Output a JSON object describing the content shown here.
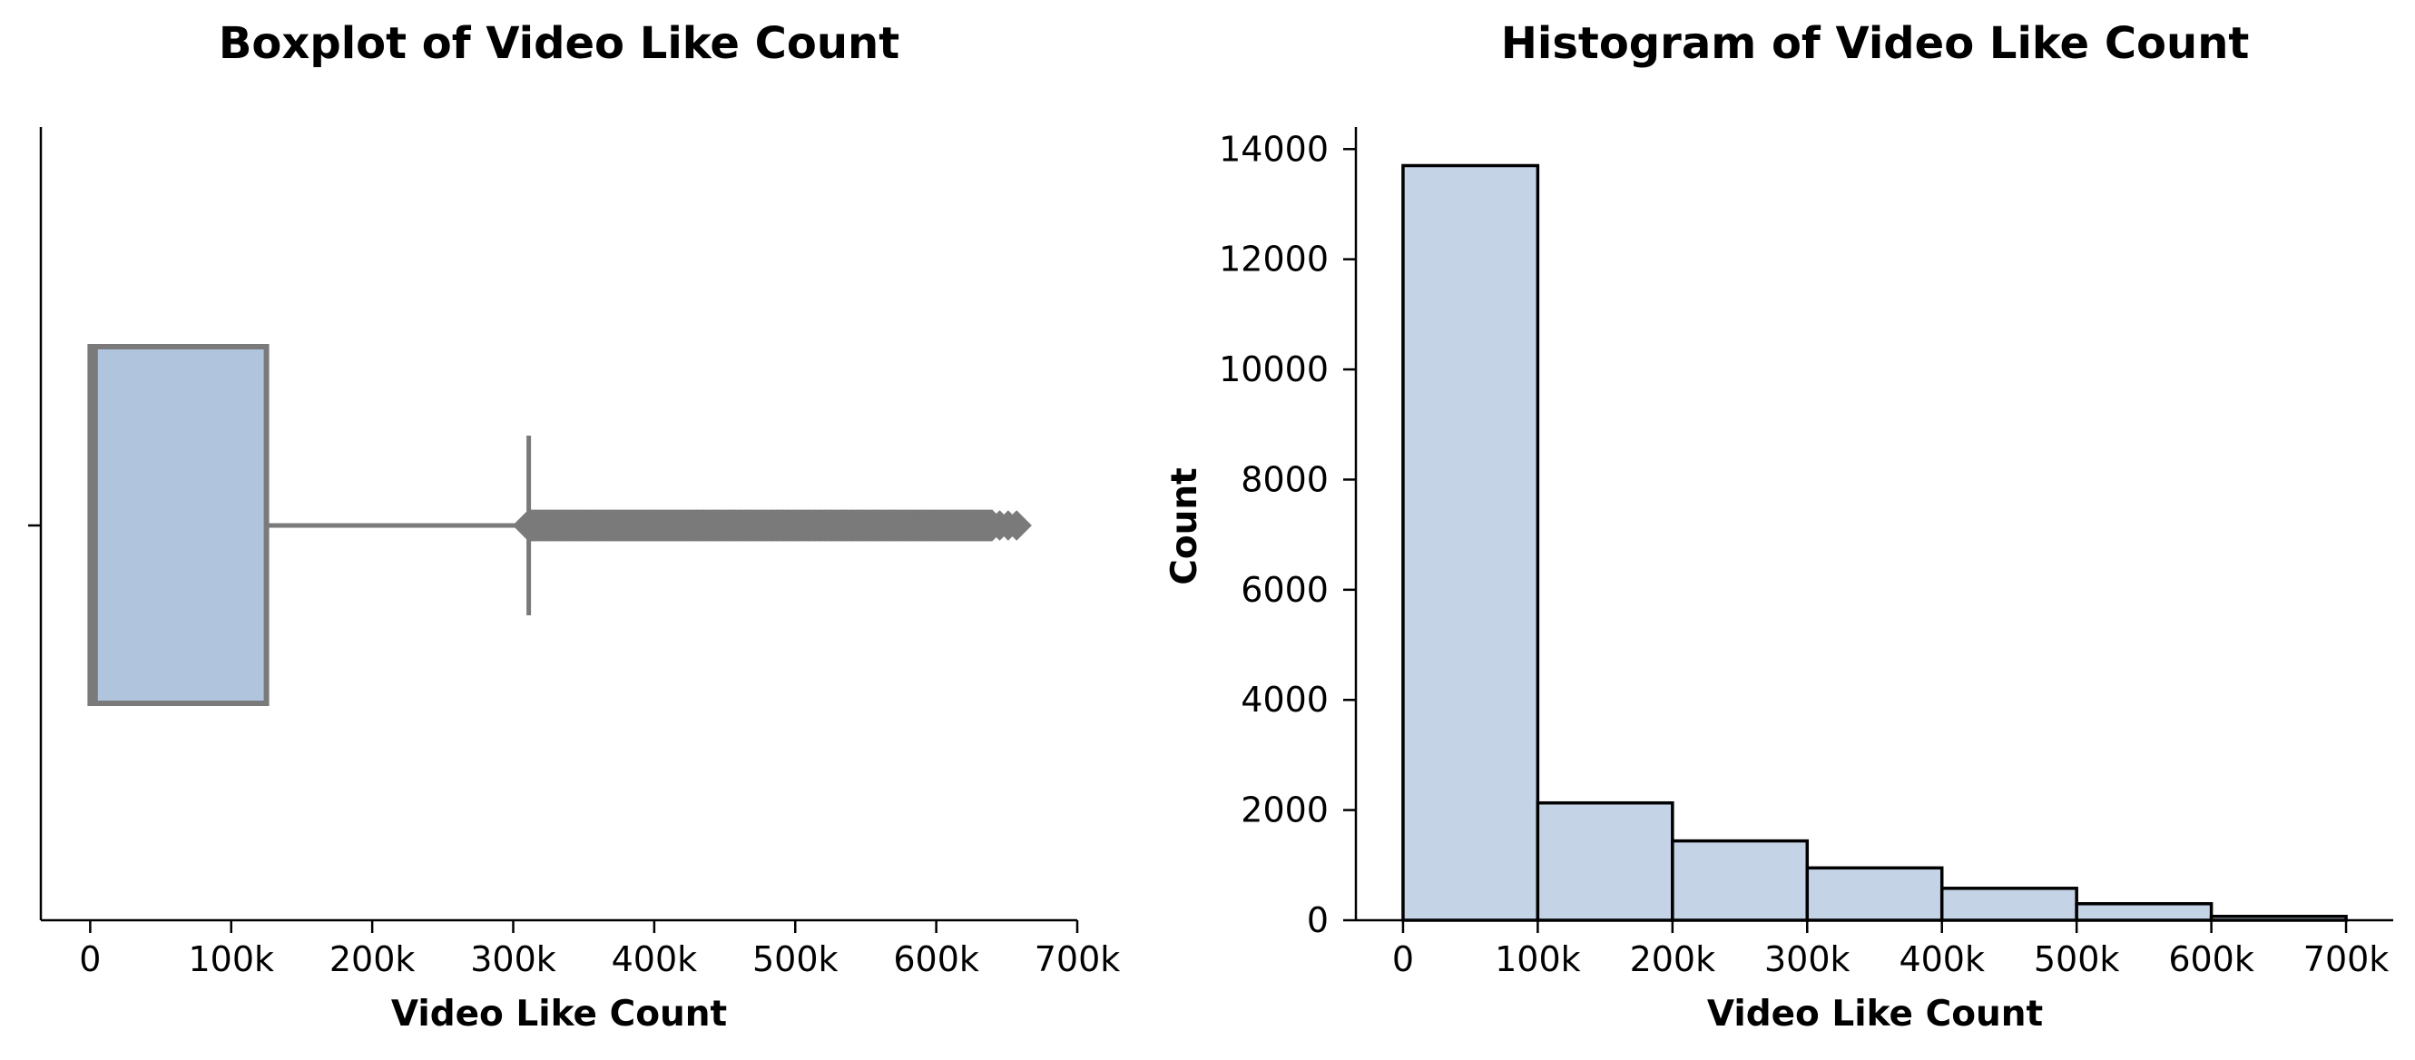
{
  "chart_data": [
    {
      "type": "box",
      "title": "Boxplot of Video Like Count",
      "xlabel": "Video Like Count",
      "ylabel": "",
      "xlim": [
        -35000,
        700000
      ],
      "xticks": [
        0,
        100000,
        200000,
        300000,
        400000,
        500000,
        600000,
        700000
      ],
      "xtick_labels": [
        "0",
        "100k",
        "200k",
        "300k",
        "400k",
        "500k",
        "600k",
        "700k"
      ],
      "stats": {
        "whisker_low": 0,
        "q1": 3500,
        "median": 3500,
        "q3": 125000,
        "whisker_high": 311000
      },
      "outliers_range": [
        311000,
        657000
      ],
      "box_color": "#b0c4de",
      "line_color": "#7a7a7a"
    },
    {
      "type": "bar",
      "title": "Histogram of Video Like Count",
      "xlabel": "Video Like Count",
      "ylabel": "Count",
      "xlim": [
        -35000,
        735000
      ],
      "ylim": [
        0,
        14400
      ],
      "xticks": [
        0,
        100000,
        200000,
        300000,
        400000,
        500000,
        600000,
        700000
      ],
      "xtick_labels": [
        "0",
        "100k",
        "200k",
        "300k",
        "400k",
        "500k",
        "600k",
        "700k"
      ],
      "yticks": [
        0,
        2000,
        4000,
        6000,
        8000,
        10000,
        12000,
        14000
      ],
      "yticks_labels": [
        "0",
        "2000",
        "4000",
        "6000",
        "8000",
        "10000",
        "12000",
        "14000"
      ],
      "bin_edges": [
        0,
        100000,
        200000,
        300000,
        400000,
        500000,
        600000,
        700000
      ],
      "values": [
        13700,
        2130,
        1440,
        950,
        580,
        300,
        70
      ],
      "bar_color": "#c5d3e7",
      "edge_color": "#000000"
    }
  ]
}
